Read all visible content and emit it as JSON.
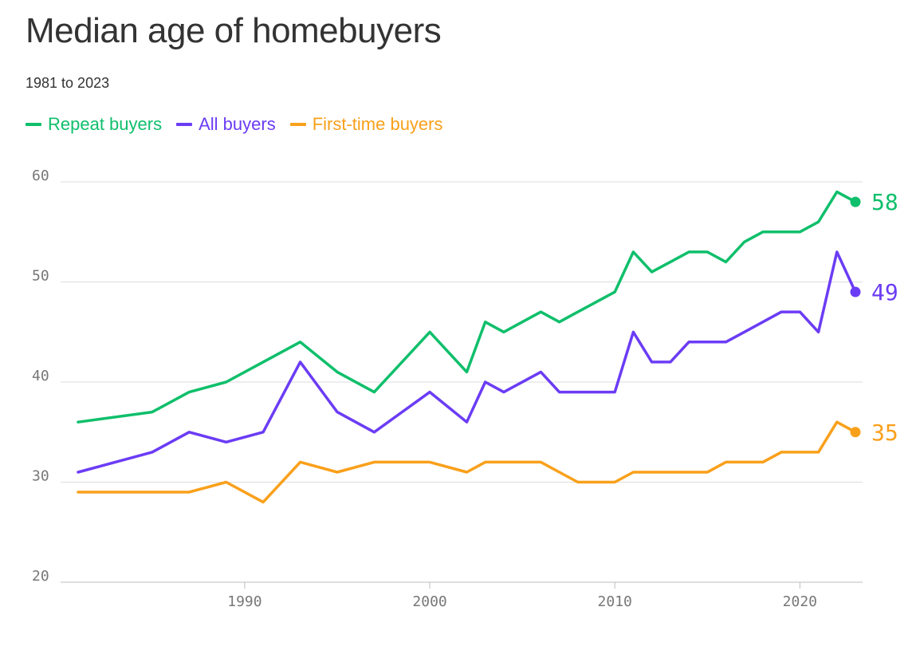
{
  "title": "Median age of homebuyers",
  "subtitle": "1981 to 2023",
  "legend": [
    {
      "label": "Repeat buyers",
      "color": "#0fbf6b"
    },
    {
      "label": "All buyers",
      "color": "#6b3cf5"
    },
    {
      "label": "First-time buyers",
      "color": "#f9a01b"
    }
  ],
  "chart_data": {
    "type": "line",
    "title": "Median age of homebuyers",
    "subtitle": "1981 to 2023",
    "xlabel": "",
    "ylabel": "",
    "ylim": [
      20,
      60
    ],
    "xlim": [
      1981,
      2023
    ],
    "yticks": [
      20,
      30,
      40,
      50,
      60
    ],
    "xticks": [
      1990,
      2000,
      2010,
      2020
    ],
    "grid": "horizontal",
    "legend_placement": "top-left",
    "series": [
      {
        "name": "Repeat buyers",
        "color": "#0fbf6b",
        "end_label": "58",
        "points": [
          [
            1981,
            36
          ],
          [
            1985,
            37
          ],
          [
            1987,
            39
          ],
          [
            1989,
            40
          ],
          [
            1991,
            42
          ],
          [
            1993,
            44
          ],
          [
            1995,
            41
          ],
          [
            1997,
            39
          ],
          [
            2000,
            45
          ],
          [
            2002,
            41
          ],
          [
            2003,
            46
          ],
          [
            2004,
            45
          ],
          [
            2006,
            47
          ],
          [
            2007,
            46
          ],
          [
            2008,
            47
          ],
          [
            2009,
            48
          ],
          [
            2010,
            49
          ],
          [
            2011,
            53
          ],
          [
            2012,
            51
          ],
          [
            2013,
            52
          ],
          [
            2014,
            53
          ],
          [
            2015,
            53
          ],
          [
            2016,
            52
          ],
          [
            2017,
            54
          ],
          [
            2018,
            55
          ],
          [
            2019,
            55
          ],
          [
            2020,
            55
          ],
          [
            2021,
            56
          ],
          [
            2022,
            59
          ],
          [
            2023,
            58
          ]
        ]
      },
      {
        "name": "All buyers",
        "color": "#6b3cf5",
        "end_label": "49",
        "points": [
          [
            1981,
            31
          ],
          [
            1985,
            33
          ],
          [
            1987,
            35
          ],
          [
            1989,
            34
          ],
          [
            1991,
            35
          ],
          [
            1993,
            42
          ],
          [
            1995,
            37
          ],
          [
            1997,
            35
          ],
          [
            2000,
            39
          ],
          [
            2002,
            36
          ],
          [
            2003,
            40
          ],
          [
            2004,
            39
          ],
          [
            2006,
            41
          ],
          [
            2007,
            39
          ],
          [
            2008,
            39
          ],
          [
            2009,
            39
          ],
          [
            2010,
            39
          ],
          [
            2011,
            45
          ],
          [
            2012,
            42
          ],
          [
            2013,
            42
          ],
          [
            2014,
            44
          ],
          [
            2015,
            44
          ],
          [
            2016,
            44
          ],
          [
            2017,
            45
          ],
          [
            2018,
            46
          ],
          [
            2019,
            47
          ],
          [
            2020,
            47
          ],
          [
            2021,
            45
          ],
          [
            2022,
            53
          ],
          [
            2023,
            49
          ]
        ]
      },
      {
        "name": "First-time buyers",
        "color": "#f9a01b",
        "end_label": "35",
        "points": [
          [
            1981,
            29
          ],
          [
            1985,
            29
          ],
          [
            1987,
            29
          ],
          [
            1989,
            30
          ],
          [
            1991,
            28
          ],
          [
            1993,
            32
          ],
          [
            1995,
            31
          ],
          [
            1997,
            32
          ],
          [
            2000,
            32
          ],
          [
            2002,
            31
          ],
          [
            2003,
            32
          ],
          [
            2004,
            32
          ],
          [
            2006,
            32
          ],
          [
            2007,
            31
          ],
          [
            2008,
            30
          ],
          [
            2009,
            30
          ],
          [
            2010,
            30
          ],
          [
            2011,
            31
          ],
          [
            2012,
            31
          ],
          [
            2013,
            31
          ],
          [
            2014,
            31
          ],
          [
            2015,
            31
          ],
          [
            2016,
            32
          ],
          [
            2017,
            32
          ],
          [
            2018,
            32
          ],
          [
            2019,
            33
          ],
          [
            2020,
            33
          ],
          [
            2021,
            33
          ],
          [
            2022,
            36
          ],
          [
            2023,
            35
          ]
        ]
      }
    ]
  }
}
